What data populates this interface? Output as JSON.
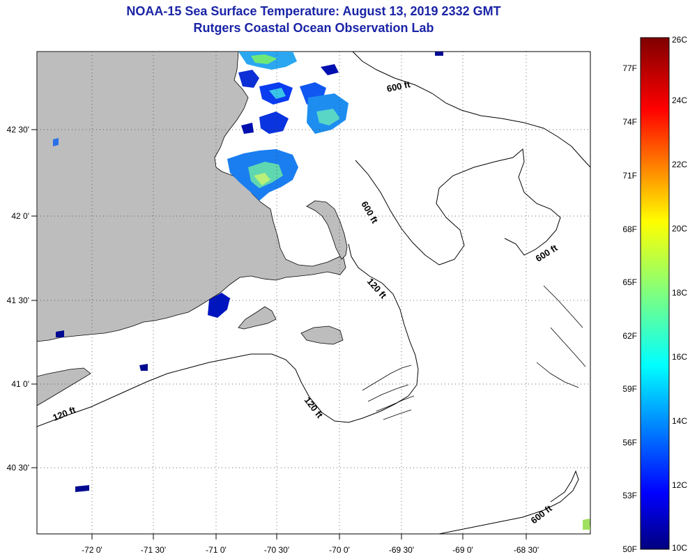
{
  "title": {
    "line1": "NOAA-15 Sea Surface Temperature:  August 13, 2019 2332 GMT",
    "line2": "Rutgers Coastal Ocean Observation Lab"
  },
  "axes": {
    "lon_labels": [
      "-72 0'",
      "-71 30'",
      "-71 0'",
      "-70 30'",
      "-70 0'",
      "-69 30'",
      "-69 0'",
      "-68 30'"
    ],
    "lat_labels": [
      "42 30'",
      "42 0'",
      "41 30'",
      "41 0'",
      "40 30'"
    ]
  },
  "contours": {
    "labels": [
      "600 ft",
      "600 ft",
      "600 ft",
      "120 ft",
      "120 ft",
      "120 ft",
      "600 ft"
    ]
  },
  "colorbar": {
    "celsius": [
      "26C",
      "24C",
      "22C",
      "20C",
      "18C",
      "16C",
      "14C",
      "12C",
      "10C"
    ],
    "fahrenheit": [
      "77F",
      "74F",
      "71F",
      "68F",
      "65F",
      "62F",
      "59F",
      "56F",
      "53F",
      "50F"
    ],
    "colors": [
      "#00007f",
      "#0000ff",
      "#007fff",
      "#00ffff",
      "#7fff7f",
      "#ffff00",
      "#ff7f00",
      "#ff0000",
      "#7f0000"
    ]
  },
  "map_colors": {
    "land": "#bdbdbd",
    "water": "#ffffff",
    "coast": "#000000"
  }
}
